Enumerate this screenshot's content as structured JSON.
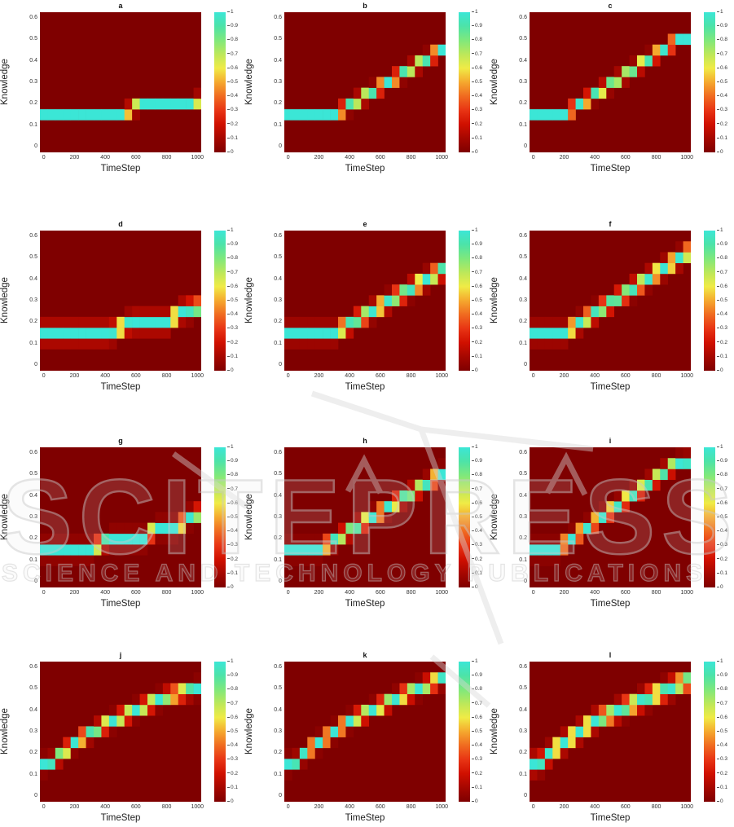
{
  "chart_data": {
    "type": "heatmap",
    "description": "4x3 grid of knowledge-tracing probability heatmaps; each cell is P(knowledge level) at a timestep; the bright band traces the estimated knowledge trajectory.",
    "xlabel": "TimeStep",
    "ylabel": "Knowledge",
    "x_range": [
      -25,
      1025
    ],
    "y_range": [
      -0.025,
      0.625
    ],
    "value_range": [
      0,
      1
    ],
    "x_bins": {
      "start": 0,
      "step": 50,
      "count": 21
    },
    "y_bins": {
      "start": 0,
      "step": 0.05,
      "count": 13
    },
    "x_tick_values": [
      0,
      200,
      400,
      600,
      800,
      1000
    ],
    "x_tick_labels": [
      "0",
      "200",
      "400",
      "600",
      "800",
      "1000"
    ],
    "y_tick_values": [
      0,
      0.1,
      0.2,
      0.3,
      0.4,
      0.5,
      0.6
    ],
    "y_tick_labels": [
      "0",
      "0.1",
      "0.2",
      "0.3",
      "0.4",
      "0.5",
      "0.6"
    ],
    "colorbar_tick_values": [
      0,
      0.1,
      0.2,
      0.3,
      0.4,
      0.5,
      0.6,
      0.7,
      0.8,
      0.9,
      1
    ],
    "colorbar_tick_labels": [
      "0",
      "0.1",
      "0.2",
      "0.3",
      "0.4",
      "0.5",
      "0.6",
      "0.7",
      "0.8",
      "0.9",
      "1"
    ],
    "background_value_color": "#7f0000",
    "colormap": [
      [
        0.0,
        "#7f0000"
      ],
      [
        0.1,
        "#a50700"
      ],
      [
        0.2,
        "#d01000"
      ],
      [
        0.3,
        "#e83414"
      ],
      [
        0.4,
        "#f06a20"
      ],
      [
        0.5,
        "#f5a82e"
      ],
      [
        0.6,
        "#f0eb46"
      ],
      [
        0.7,
        "#bce85a"
      ],
      [
        0.8,
        "#7fe87c"
      ],
      [
        0.9,
        "#4de3a8"
      ],
      [
        1.0,
        "#3be6d6"
      ]
    ],
    "grid": {
      "rows": 4,
      "cols": 3
    },
    "subplots": [
      {
        "label": "a",
        "sigma": 0.016,
        "band_knots": [
          [
            0,
            0.15
          ],
          [
            500,
            0.15
          ],
          [
            640,
            0.2
          ],
          [
            950,
            0.2
          ],
          [
            1000,
            0.215
          ]
        ]
      },
      {
        "label": "b",
        "sigma": 0.017,
        "band_knots": [
          [
            0,
            0.15
          ],
          [
            300,
            0.15
          ],
          [
            1000,
            0.45
          ]
        ]
      },
      {
        "label": "c",
        "sigma": 0.017,
        "band_knots": [
          [
            0,
            0.15
          ],
          [
            200,
            0.15
          ],
          [
            950,
            0.5
          ],
          [
            1000,
            0.5
          ]
        ]
      },
      {
        "label": "d",
        "sigma": 0.024,
        "band_knots": [
          [
            0,
            0.15
          ],
          [
            440,
            0.15
          ],
          [
            560,
            0.2
          ],
          [
            800,
            0.2
          ],
          [
            900,
            0.25
          ],
          [
            1000,
            0.265
          ]
        ]
      },
      {
        "label": "e",
        "sigma": 0.022,
        "band_knots": [
          [
            0,
            0.15
          ],
          [
            300,
            0.15
          ],
          [
            1000,
            0.44
          ]
        ]
      },
      {
        "label": "f",
        "sigma": 0.022,
        "band_knots": [
          [
            0,
            0.15
          ],
          [
            200,
            0.15
          ],
          [
            1000,
            0.52
          ]
        ]
      },
      {
        "label": "g",
        "sigma": 0.02,
        "band_knots": [
          [
            0,
            0.15
          ],
          [
            310,
            0.15
          ],
          [
            420,
            0.2
          ],
          [
            650,
            0.2
          ],
          [
            730,
            0.25
          ],
          [
            870,
            0.25
          ],
          [
            940,
            0.3
          ],
          [
            1000,
            0.315
          ]
        ]
      },
      {
        "label": "h",
        "sigma": 0.019,
        "band_knots": [
          [
            0,
            0.15
          ],
          [
            200,
            0.15
          ],
          [
            1000,
            0.5
          ]
        ]
      },
      {
        "label": "i",
        "sigma": 0.019,
        "band_knots": [
          [
            0,
            0.15
          ],
          [
            150,
            0.15
          ],
          [
            930,
            0.55
          ],
          [
            1000,
            0.555
          ]
        ]
      },
      {
        "label": "j",
        "sigma": 0.019,
        "band_knots": [
          [
            0,
            0.15
          ],
          [
            40,
            0.15
          ],
          [
            120,
            0.2
          ],
          [
            220,
            0.26
          ],
          [
            420,
            0.34
          ],
          [
            780,
            0.46
          ],
          [
            1000,
            0.5
          ]
        ]
      },
      {
        "label": "k",
        "sigma": 0.019,
        "band_knots": [
          [
            0,
            0.15
          ],
          [
            40,
            0.15
          ],
          [
            120,
            0.21
          ],
          [
            400,
            0.35
          ],
          [
            750,
            0.47
          ],
          [
            1000,
            0.545
          ]
        ]
      },
      {
        "label": "l",
        "sigma": 0.024,
        "band_knots": [
          [
            0,
            0.15
          ],
          [
            40,
            0.15
          ],
          [
            120,
            0.21
          ],
          [
            400,
            0.35
          ],
          [
            750,
            0.46
          ],
          [
            1000,
            0.535
          ]
        ]
      }
    ]
  },
  "watermark": {
    "big_letters": [
      "S",
      "C",
      "I",
      "T",
      "E",
      "P",
      "R",
      "E",
      "S",
      "S"
    ],
    "big_text": "SCITEPRESS",
    "small_text": "SCIENCE AND TECHNOLOGY PUBLICATIONS",
    "color": "#c9c9c9"
  }
}
